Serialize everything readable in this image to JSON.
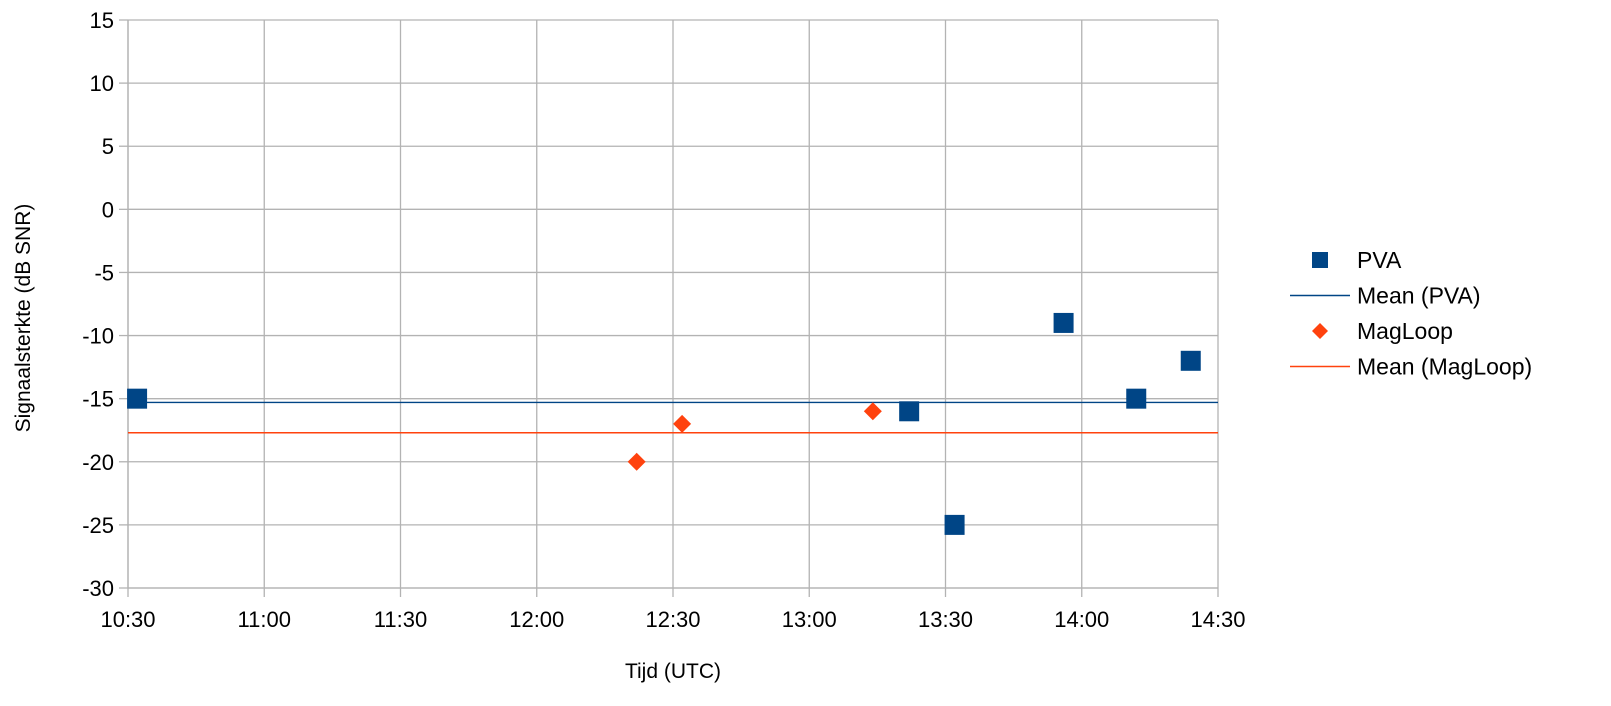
{
  "chart_data": {
    "type": "scatter",
    "title": "",
    "xlabel": "Tijd (UTC)",
    "ylabel": "Signaalsterkte (dB SNR)",
    "x_ticks": [
      "10:30",
      "11:00",
      "11:30",
      "12:00",
      "12:30",
      "13:00",
      "13:30",
      "14:00",
      "14:30"
    ],
    "xlim": [
      "10:30",
      "14:30"
    ],
    "ylim": [
      -30,
      15
    ],
    "y_ticks": [
      15,
      10,
      5,
      0,
      -5,
      -10,
      -15,
      -20,
      -25,
      -30
    ],
    "grid": true,
    "legend_position": "right",
    "series": [
      {
        "name": "PVA",
        "marker": "square",
        "color": "#004586",
        "points": [
          {
            "x": "10:32",
            "y": -15
          },
          {
            "x": "13:22",
            "y": -16
          },
          {
            "x": "13:32",
            "y": -25
          },
          {
            "x": "13:56",
            "y": -9
          },
          {
            "x": "14:12",
            "y": -15
          },
          {
            "x": "14:24",
            "y": -12
          }
        ]
      },
      {
        "name": "Mean (PVA)",
        "type": "line",
        "color": "#004586",
        "y": -15.3
      },
      {
        "name": "MagLoop",
        "marker": "diamond",
        "color": "#ff420e",
        "points": [
          {
            "x": "12:22",
            "y": -20
          },
          {
            "x": "12:32",
            "y": -17
          },
          {
            "x": "13:14",
            "y": -16
          }
        ]
      },
      {
        "name": "Mean (MagLoop)",
        "type": "line",
        "color": "#ff420e",
        "y": -17.7
      }
    ]
  }
}
